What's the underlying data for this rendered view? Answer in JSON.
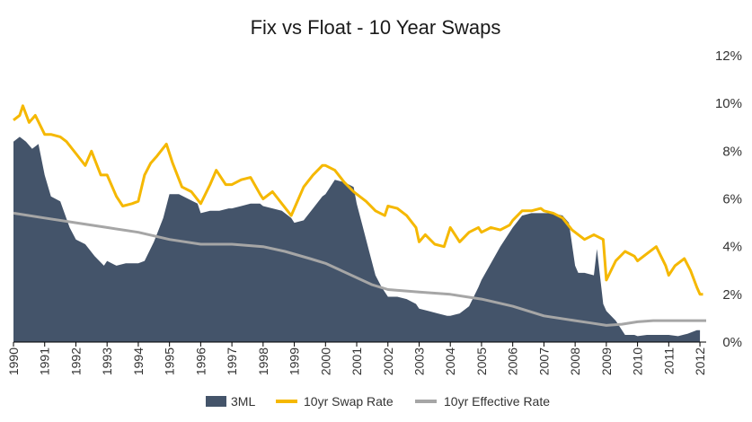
{
  "chart_data": {
    "type": "area",
    "title": "Fix vs Float - 10 Year Swaps",
    "xlabel": "",
    "ylabel": "",
    "xlim": [
      1990,
      2012.2
    ],
    "ylim": [
      0,
      12
    ],
    "y_ticks": [
      "0%",
      "2%",
      "4%",
      "6%",
      "8%",
      "10%",
      "12%"
    ],
    "x_ticks": [
      "1990",
      "1991",
      "1992",
      "1993",
      "1994",
      "1995",
      "1996",
      "1997",
      "1998",
      "1999",
      "2000",
      "2001",
      "2002",
      "2003",
      "2004",
      "2005",
      "2006",
      "2007",
      "2008",
      "2009",
      "2010",
      "2011",
      "2012"
    ],
    "legend_position": "bottom-center",
    "series": [
      {
        "name": "3ML",
        "kind": "area",
        "color": "#44546a",
        "x": [
          1990.0,
          1990.2,
          1990.4,
          1990.6,
          1990.8,
          1991.0,
          1991.2,
          1991.5,
          1991.8,
          1992.0,
          1992.3,
          1992.6,
          1992.9,
          1993.0,
          1993.3,
          1993.6,
          1993.9,
          1994.0,
          1994.2,
          1994.5,
          1994.8,
          1995.0,
          1995.3,
          1995.6,
          1995.9,
          1996.0,
          1996.3,
          1996.6,
          1996.9,
          1997.0,
          1997.3,
          1997.6,
          1997.9,
          1998.0,
          1998.3,
          1998.6,
          1998.9,
          1999.0,
          1999.3,
          1999.6,
          1999.9,
          2000.0,
          2000.3,
          2000.6,
          2000.9,
          2001.0,
          2001.2,
          2001.4,
          2001.6,
          2001.8,
          2002.0,
          2002.3,
          2002.6,
          2002.9,
          2003.0,
          2003.3,
          2003.6,
          2003.9,
          2004.0,
          2004.3,
          2004.6,
          2004.9,
          2005.0,
          2005.3,
          2005.6,
          2005.9,
          2006.0,
          2006.3,
          2006.6,
          2006.9,
          2007.0,
          2007.3,
          2007.6,
          2007.8,
          2008.0,
          2008.1,
          2008.3,
          2008.6,
          2008.7,
          2008.9,
          2009.0,
          2009.3,
          2009.6,
          2009.9,
          2010.0,
          2010.3,
          2010.6,
          2010.9,
          2011.0,
          2011.3,
          2011.6,
          2011.9,
          2012.0
        ],
        "values": [
          8.4,
          8.6,
          8.4,
          8.1,
          8.3,
          7.0,
          6.1,
          5.9,
          4.8,
          4.3,
          4.1,
          3.6,
          3.2,
          3.4,
          3.2,
          3.3,
          3.3,
          3.3,
          3.4,
          4.2,
          5.2,
          6.2,
          6.2,
          6.0,
          5.8,
          5.4,
          5.5,
          5.5,
          5.6,
          5.6,
          5.7,
          5.8,
          5.8,
          5.7,
          5.6,
          5.5,
          5.2,
          5.0,
          5.1,
          5.6,
          6.1,
          6.2,
          6.8,
          6.7,
          6.5,
          5.8,
          4.8,
          3.8,
          2.8,
          2.3,
          1.9,
          1.9,
          1.8,
          1.6,
          1.4,
          1.3,
          1.2,
          1.1,
          1.1,
          1.2,
          1.5,
          2.3,
          2.6,
          3.3,
          4.0,
          4.6,
          4.8,
          5.3,
          5.4,
          5.4,
          5.4,
          5.4,
          5.3,
          5.0,
          3.2,
          2.9,
          2.9,
          2.8,
          3.9,
          1.6,
          1.3,
          0.9,
          0.3,
          0.3,
          0.25,
          0.3,
          0.3,
          0.3,
          0.3,
          0.25,
          0.35,
          0.5,
          0.5
        ]
      },
      {
        "name": "10yr Swap Rate",
        "kind": "line",
        "color": "#f5b800",
        "x": [
          1990.0,
          1990.2,
          1990.3,
          1990.5,
          1990.7,
          1991.0,
          1991.2,
          1991.5,
          1991.7,
          1992.0,
          1992.3,
          1992.5,
          1992.8,
          1993.0,
          1993.3,
          1993.5,
          1993.8,
          1994.0,
          1994.2,
          1994.4,
          1994.6,
          1994.9,
          1995.1,
          1995.4,
          1995.7,
          1996.0,
          1996.3,
          1996.5,
          1996.8,
          1997.0,
          1997.3,
          1997.6,
          1997.9,
          1998.0,
          1998.3,
          1998.6,
          1998.9,
          1999.0,
          1999.3,
          1999.6,
          1999.9,
          2000.0,
          2000.3,
          2000.6,
          2000.9,
          2001.0,
          2001.3,
          2001.6,
          2001.9,
          2002.0,
          2002.3,
          2002.6,
          2002.9,
          2003.0,
          2003.2,
          2003.5,
          2003.8,
          2004.0,
          2004.3,
          2004.6,
          2004.9,
          2005.0,
          2005.3,
          2005.6,
          2005.9,
          2006.0,
          2006.3,
          2006.6,
          2006.9,
          2007.0,
          2007.3,
          2007.6,
          2007.9,
          2008.0,
          2008.3,
          2008.6,
          2008.9,
          2009.0,
          2009.3,
          2009.6,
          2009.9,
          2010.0,
          2010.3,
          2010.6,
          2010.9,
          2011.0,
          2011.2,
          2011.5,
          2011.7,
          2011.9,
          2012.0,
          2012.1
        ],
        "values": [
          9.3,
          9.5,
          9.9,
          9.2,
          9.5,
          8.7,
          8.7,
          8.6,
          8.4,
          7.9,
          7.4,
          8.0,
          7.0,
          7.0,
          6.1,
          5.7,
          5.8,
          5.9,
          7.0,
          7.5,
          7.8,
          8.3,
          7.5,
          6.5,
          6.3,
          5.8,
          6.6,
          7.2,
          6.6,
          6.6,
          6.8,
          6.9,
          6.2,
          6.0,
          6.3,
          5.8,
          5.3,
          5.6,
          6.5,
          7.0,
          7.4,
          7.4,
          7.2,
          6.7,
          6.3,
          6.2,
          5.9,
          5.5,
          5.3,
          5.7,
          5.6,
          5.3,
          4.8,
          4.2,
          4.5,
          4.1,
          4.0,
          4.8,
          4.2,
          4.6,
          4.8,
          4.6,
          4.8,
          4.7,
          4.9,
          5.1,
          5.5,
          5.5,
          5.6,
          5.5,
          5.4,
          5.2,
          4.7,
          4.6,
          4.3,
          4.5,
          4.3,
          2.6,
          3.4,
          3.8,
          3.6,
          3.4,
          3.7,
          4.0,
          3.2,
          2.8,
          3.2,
          3.5,
          3.0,
          2.3,
          2.0,
          2.0
        ]
      },
      {
        "name": "10yr Effective Rate",
        "kind": "line",
        "color": "#a6a6a6",
        "x": [
          1990.0,
          1991.0,
          1992.0,
          1993.0,
          1994.0,
          1995.0,
          1996.0,
          1997.0,
          1998.0,
          1998.7,
          1999.5,
          2000.0,
          2000.5,
          2001.0,
          2001.5,
          2002.0,
          2003.0,
          2004.0,
          2005.0,
          2006.0,
          2007.0,
          2008.0,
          2008.5,
          2009.0,
          2009.5,
          2010.0,
          2010.5,
          2011.0,
          2011.5,
          2012.0,
          2012.2
        ],
        "values": [
          5.4,
          5.2,
          5.0,
          4.8,
          4.6,
          4.3,
          4.1,
          4.1,
          4.0,
          3.8,
          3.5,
          3.3,
          3.0,
          2.7,
          2.4,
          2.2,
          2.1,
          2.0,
          1.8,
          1.5,
          1.1,
          0.9,
          0.8,
          0.7,
          0.75,
          0.85,
          0.9,
          0.9,
          0.9,
          0.9,
          0.9
        ]
      }
    ]
  }
}
